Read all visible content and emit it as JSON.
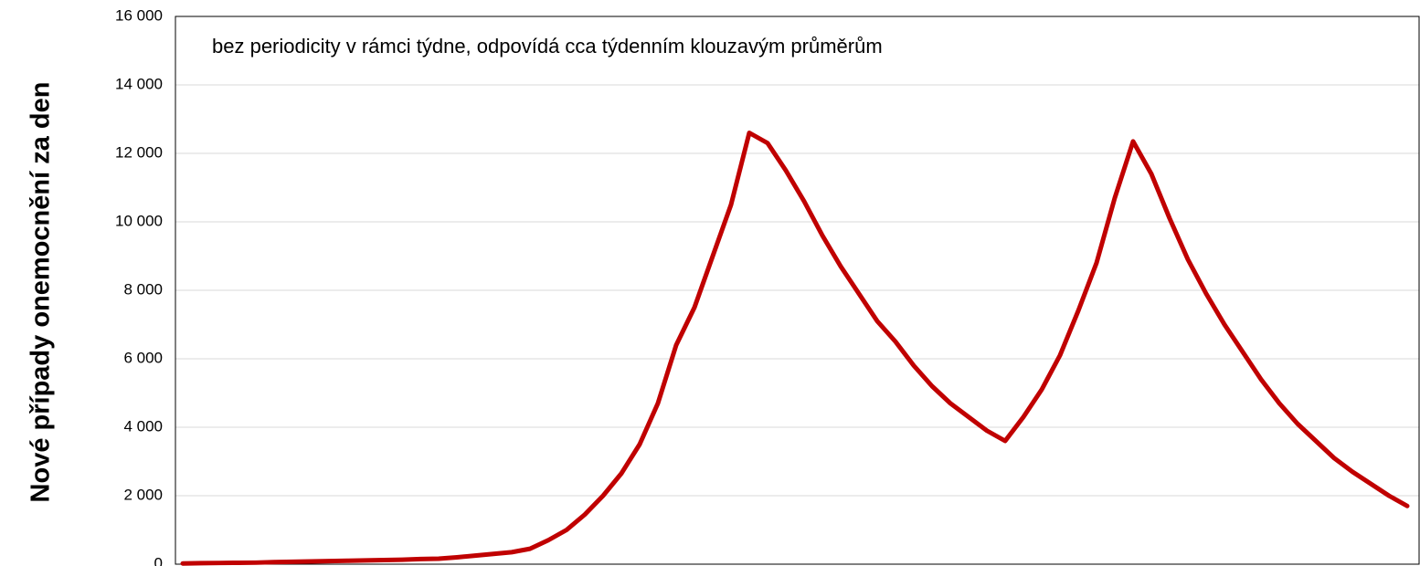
{
  "chart_data": {
    "type": "line",
    "ylabel": "Nové případy onemocnění za den",
    "annotation": "bez periodicity v rámci týdne, odpovídá cca týdenním klouzavým průměrům",
    "series": [
      {
        "color": "#c00000",
        "values": [
          20,
          30,
          35,
          40,
          45,
          60,
          70,
          80,
          90,
          100,
          110,
          120,
          130,
          150,
          160,
          200,
          250,
          300,
          350,
          450,
          700,
          1000,
          1450,
          2000,
          2650,
          3500,
          4700,
          6400,
          7500,
          9000,
          10500,
          12600,
          12300,
          11500,
          10600,
          9600,
          8700,
          7900,
          7100,
          6500,
          5800,
          5200,
          4700,
          4300,
          3900,
          3600,
          4300,
          5100,
          6100,
          7400,
          8800,
          10700,
          12350,
          11400,
          10100,
          8900,
          7900,
          7000,
          6200,
          5400,
          4700,
          4100,
          3600,
          3100,
          2700,
          2350,
          2000,
          1700
        ]
      }
    ],
    "ylim": [
      0,
      16000
    ],
    "yticks": [
      0,
      {
        "value": 2000,
        "label": "2 000"
      },
      {
        "value": 4000,
        "label": "4 000"
      },
      {
        "value": 6000,
        "label": "6 000"
      },
      {
        "value": 8000,
        "label": "8 000"
      },
      {
        "value": 10000,
        "label": "10 000"
      },
      {
        "value": 12000,
        "label": "12 000"
      },
      {
        "value": 14000,
        "label": "14 000"
      },
      {
        "value": 16000,
        "label": "16 000"
      }
    ],
    "grid": true
  }
}
